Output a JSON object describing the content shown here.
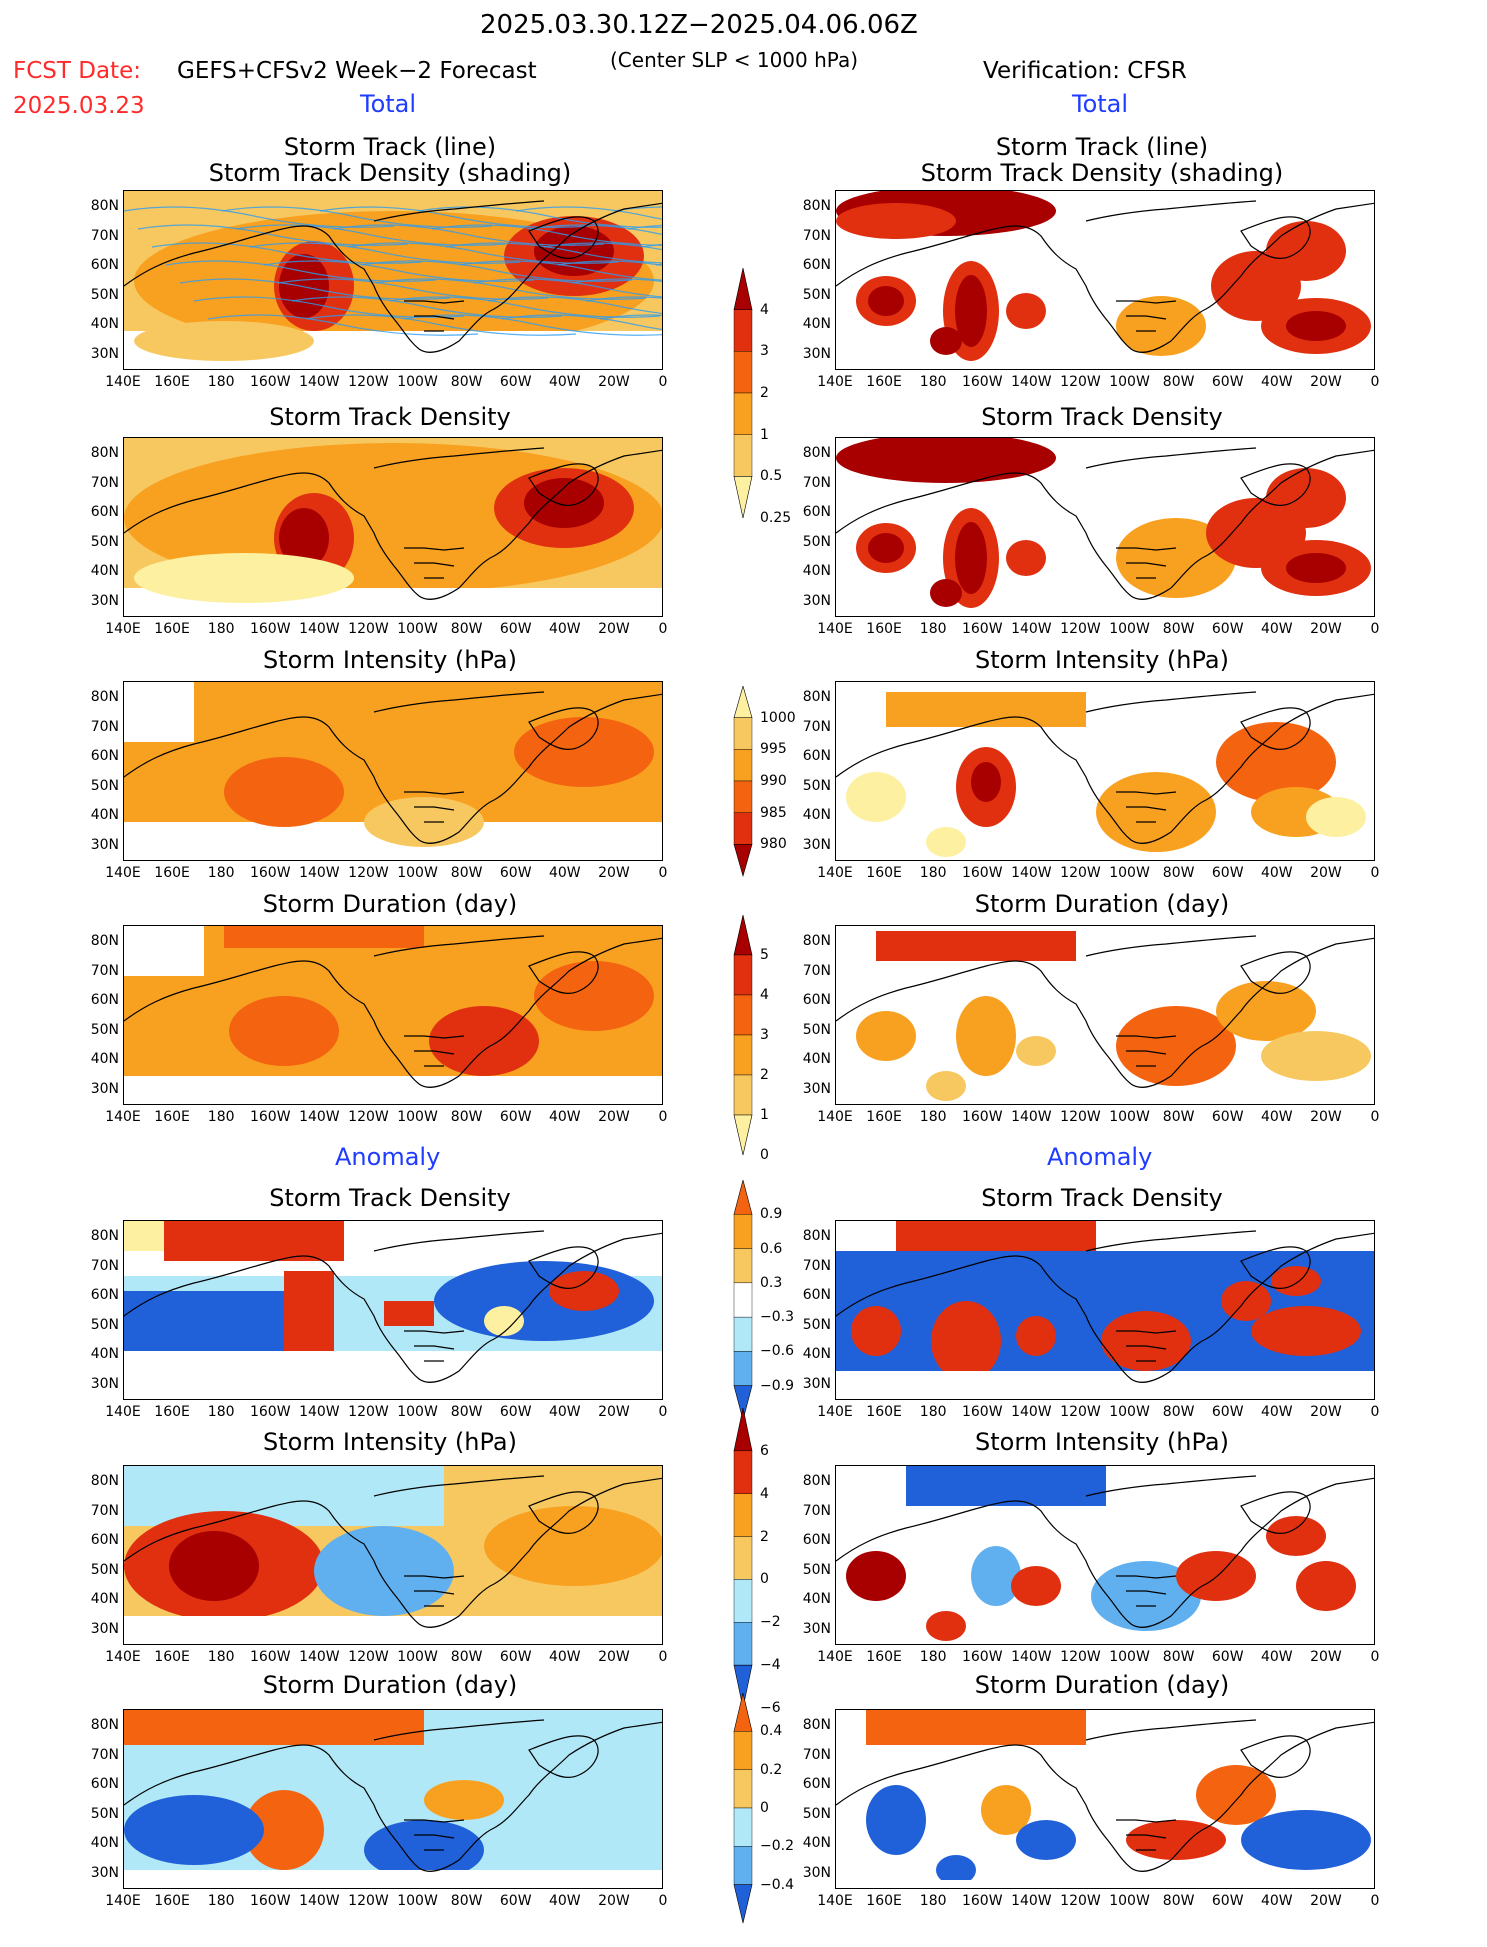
{
  "header": {
    "period": "2025.03.30.12Z−2025.04.06.06Z",
    "fcst_label": "FCST Date:",
    "fcst_date": "2025.03.23",
    "forecast_name": "GEFS+CFSv2 Week−2 Forecast",
    "condition": "(Center SLP < 1000 hPa)",
    "verification": "Verification: CFSR"
  },
  "sections": {
    "total_left": "Total",
    "total_right": "Total",
    "anomaly_left": "Anomaly",
    "anomaly_right": "Anomaly"
  },
  "titles": {
    "track_line": "Storm Track (line)",
    "track_density_shading": "Storm Track Density (shading)",
    "track_density": "Storm Track Density",
    "intensity": "Storm Intensity (hPa)",
    "duration": "Storm Duration (day)"
  },
  "axes": {
    "lat_labels": [
      "80N",
      "70N",
      "60N",
      "50N",
      "40N",
      "30N"
    ],
    "lon_labels": [
      "140E",
      "160E",
      "180",
      "160W",
      "140W",
      "120W",
      "100W",
      "80W",
      "60W",
      "40W",
      "20W",
      "0"
    ]
  },
  "colorbars": {
    "density_total": [
      "4",
      "3",
      "2",
      "1",
      "0.5",
      "0.25"
    ],
    "intensity_total": [
      "1000",
      "995",
      "990",
      "985",
      "980"
    ],
    "duration_total": [
      "5",
      "4",
      "3",
      "2",
      "1",
      "0"
    ],
    "density_anom": [
      "0.9",
      "0.6",
      "0.3",
      "−0.3",
      "−0.6",
      "−0.9"
    ],
    "intensity_anom": [
      "6",
      "4",
      "2",
      "0",
      "−2",
      "−4",
      "−6"
    ],
    "duration_anom": [
      "0.4",
      "0.2",
      "0",
      "−0.2",
      "−0.4"
    ]
  },
  "colors": {
    "dark_red": "#a80000",
    "red": "#e03010",
    "orange_red": "#f46410",
    "orange": "#f8a020",
    "light_orange": "#f8c860",
    "pale_yellow": "#fdf0a0",
    "light_blue": "#b0e8f8",
    "mid_blue": "#60b0f0",
    "blue": "#2060d8",
    "track_line": "#2d9cf0"
  }
}
